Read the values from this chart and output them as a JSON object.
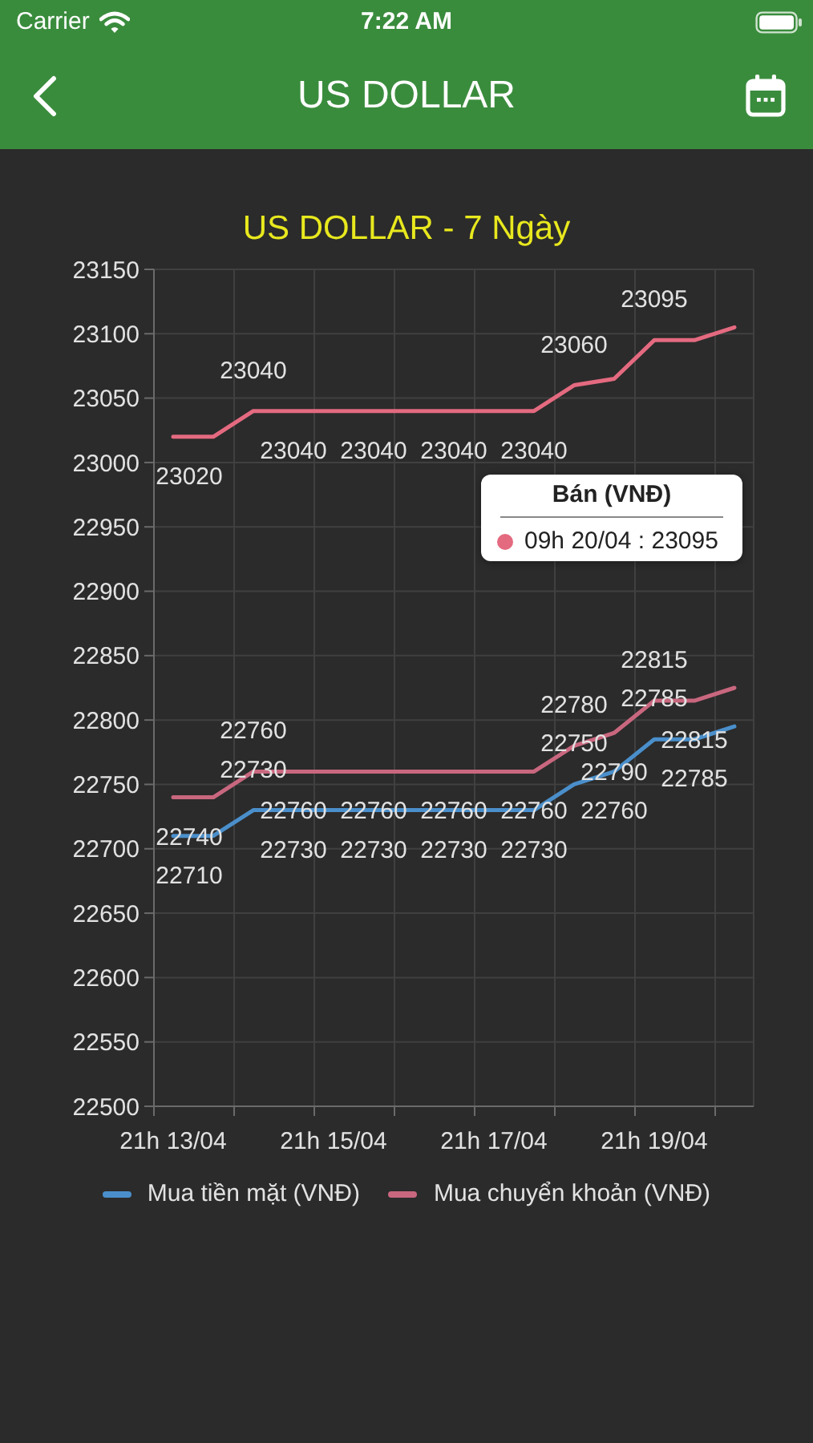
{
  "chart_data": {
    "type": "line",
    "title": "US DOLLAR - 7 Ngày",
    "annotations": [
      "Carrier",
      "7:22 AM",
      "US DOLLAR",
      "Bán (VNĐ)",
      "09h 20/04 : 23095"
    ],
    "categories": [
      "21h 13/04",
      null,
      null,
      null,
      "21h 15/04",
      null,
      null,
      null,
      "21h 17/04",
      null,
      null,
      null,
      "21h 19/04",
      null,
      null
    ],
    "series": [
      {
        "name": "Mua tiền mặt (VNĐ)",
        "color": "#4a8fcb",
        "values": [
          22710,
          22710,
          22730,
          22730,
          22730,
          22730,
          22730,
          22730,
          22730,
          22730,
          22750,
          22760,
          22785,
          22785,
          22795
        ],
        "value_labels": [
          "22710",
          null,
          "22730",
          "22730",
          null,
          "22730",
          null,
          "22730",
          null,
          "22730",
          "22750",
          "22760",
          "22785",
          "22785",
          null
        ]
      },
      {
        "name": "Mua chuyển khoản (VNĐ)",
        "color": "#c9677f",
        "values": [
          22740,
          22740,
          22760,
          22760,
          22760,
          22760,
          22760,
          22760,
          22760,
          22760,
          22780,
          22790,
          22815,
          22815,
          22825
        ],
        "value_labels": [
          "22740",
          null,
          "22760",
          "22760",
          null,
          "22760",
          null,
          "22760",
          null,
          "22760",
          "22780",
          "22790",
          "22815",
          "22815",
          null
        ]
      },
      {
        "color": "#e46a80",
        "values": [
          23020,
          23020,
          23040,
          23040,
          23040,
          23040,
          23040,
          23040,
          23040,
          23040,
          23060,
          23065,
          23095,
          23095,
          23105
        ],
        "value_labels": [
          "23020",
          null,
          "23040",
          "23040",
          null,
          "23040",
          null,
          "23040",
          null,
          "23040",
          "23060",
          null,
          "23095",
          null,
          null
        ]
      }
    ],
    "ylim": [
      22500,
      23150
    ],
    "yticks": [
      22500,
      22550,
      22600,
      22650,
      22700,
      22750,
      22800,
      22850,
      22900,
      22950,
      23000,
      23050,
      23100,
      23150
    ],
    "grid": true,
    "legend": "bottom",
    "marker": "none"
  }
}
